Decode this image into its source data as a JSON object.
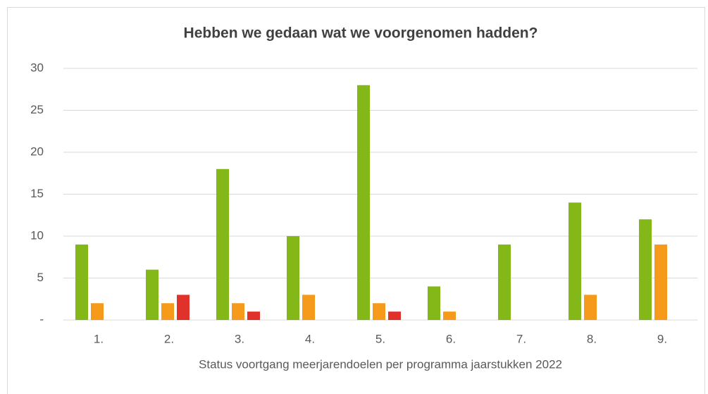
{
  "chart_data": {
    "type": "bar",
    "title": "Hebben we gedaan wat we voorgenomen hadden?",
    "x_label": "Status voortgang meerjarendoelen per programma jaarstukken 2022",
    "categories": [
      "1.",
      "2.",
      "3.",
      "4.",
      "5.",
      "6.",
      "7.",
      "8.",
      "9."
    ],
    "series": [
      {
        "color": "#84b819",
        "values": [
          9,
          6,
          18,
          10,
          28,
          4,
          9,
          14,
          12
        ]
      },
      {
        "color": "#f59a1b",
        "values": [
          2,
          2,
          2,
          3,
          2,
          1,
          0,
          3,
          9
        ]
      },
      {
        "color": "#e0312b",
        "values": [
          0,
          3,
          1,
          0,
          1,
          0,
          0,
          0,
          0
        ]
      }
    ],
    "ylim": [
      0,
      30
    ],
    "yticks": [
      {
        "value": 0,
        "label": "-"
      },
      5,
      10,
      15,
      20,
      25,
      30
    ],
    "grid": true
  }
}
